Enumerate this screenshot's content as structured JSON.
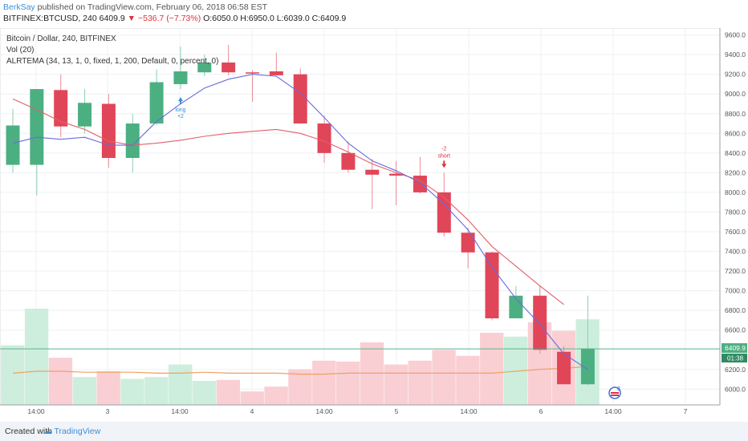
{
  "header": {
    "user": "BerkSay",
    "published_text": "published on TradingView.com, February 06, 2018 06:58 EST",
    "symbol": "BITFINEX:BTCUSD, 240",
    "last": "6409.9",
    "change": "▼ −536.7 (−7.73%)",
    "ohlc": "O:6050.0 H:6950.0 L:6039.0 C:6409.9"
  },
  "legend": {
    "line1": "Bitcoin / Dollar, 240, BITFINEX",
    "line2": "Vol (20)",
    "line3": "ALRTEMA (34, 13, 1, 0, fixed, 1, 200, Default, 0, percent, 0)"
  },
  "colors": {
    "up": "#4caf82",
    "down": "#e04658",
    "vol_up": "#cdeedd",
    "vol_down": "#f9cfd4",
    "ema_fast": "#6a6ae0",
    "ema_slow": "#e0606a",
    "vol_ma": "#f0a060",
    "price_line": "#4caf82",
    "grid": "#eef0f3"
  },
  "price_label": {
    "value": "6409.9",
    "countdown": "01:38"
  },
  "signals": [
    {
      "text": "long",
      "value": "+2",
      "candle": 7,
      "color": "#3c8fd6"
    },
    {
      "text": "short",
      "value": "-2",
      "candle": 18,
      "color": "#e0303c"
    }
  ],
  "chart_data": {
    "type": "candlestick",
    "title": "Bitcoin / Dollar, 240, BITFINEX",
    "y_ticks": [
      6000,
      6200,
      6400,
      6600,
      6800,
      7000,
      7200,
      7400,
      7600,
      7800,
      8000,
      8200,
      8400,
      8600,
      8800,
      9000,
      9200,
      9400,
      9600
    ],
    "ylim": [
      5840,
      9670
    ],
    "x_labels": [
      "14:00",
      "3",
      "14:00",
      "4",
      "14:00",
      "5",
      "14:00",
      "6",
      "14:00",
      "7"
    ],
    "candles": [
      {
        "o": 8280,
        "h": 8850,
        "l": 8200,
        "c": 8680
      },
      {
        "o": 8280,
        "h": 9050,
        "l": 7970,
        "c": 9050
      },
      {
        "o": 9040,
        "h": 9200,
        "l": 8560,
        "c": 8670
      },
      {
        "o": 8670,
        "h": 9050,
        "l": 8600,
        "c": 8910
      },
      {
        "o": 8900,
        "h": 9000,
        "l": 8250,
        "c": 8350
      },
      {
        "o": 8350,
        "h": 8800,
        "l": 8200,
        "c": 8700
      },
      {
        "o": 8700,
        "h": 9250,
        "l": 8680,
        "c": 9120
      },
      {
        "o": 9100,
        "h": 9480,
        "l": 9050,
        "c": 9230
      },
      {
        "o": 9220,
        "h": 9400,
        "l": 9180,
        "c": 9320
      },
      {
        "o": 9320,
        "h": 9500,
        "l": 9190,
        "c": 9220
      },
      {
        "o": 9220,
        "h": 9240,
        "l": 8920,
        "c": 9210
      },
      {
        "o": 9230,
        "h": 9420,
        "l": 9190,
        "c": 9190
      },
      {
        "o": 9200,
        "h": 9260,
        "l": 8700,
        "c": 8700
      },
      {
        "o": 8700,
        "h": 8780,
        "l": 8300,
        "c": 8400
      },
      {
        "o": 8400,
        "h": 8520,
        "l": 8200,
        "c": 8230
      },
      {
        "o": 8230,
        "h": 8340,
        "l": 7830,
        "c": 8180
      },
      {
        "o": 8190,
        "h": 8320,
        "l": 7870,
        "c": 8170
      },
      {
        "o": 8170,
        "h": 8360,
        "l": 7990,
        "c": 8000
      },
      {
        "o": 8000,
        "h": 8200,
        "l": 7550,
        "c": 7590
      },
      {
        "o": 7590,
        "h": 7640,
        "l": 7230,
        "c": 7390
      },
      {
        "o": 7390,
        "h": 7400,
        "l": 6700,
        "c": 6720
      },
      {
        "o": 6720,
        "h": 7050,
        "l": 6720,
        "c": 6950
      },
      {
        "o": 6950,
        "h": 7050,
        "l": 6360,
        "c": 6400
      },
      {
        "o": 6380,
        "h": 6440,
        "l": 6050,
        "c": 6050
      },
      {
        "o": 6050,
        "h": 6950,
        "l": 6039,
        "c": 6409.9
      }
    ],
    "volume": [
      0.62,
      1.0,
      0.49,
      0.29,
      0.35,
      0.27,
      0.29,
      0.42,
      0.25,
      0.26,
      0.14,
      0.19,
      0.37,
      0.46,
      0.45,
      0.65,
      0.42,
      0.46,
      0.57,
      0.51,
      0.75,
      0.71,
      0.86,
      0.77,
      0.89
    ],
    "vol_ma": [
      0.33,
      0.35,
      0.35,
      0.34,
      0.34,
      0.34,
      0.33,
      0.33,
      0.34,
      0.33,
      0.33,
      0.33,
      0.32,
      0.32,
      0.33,
      0.33,
      0.33,
      0.33,
      0.33,
      0.33,
      0.33,
      0.35,
      0.37,
      0.38,
      0.4
    ],
    "ema_fast": [
      8500,
      8560,
      8540,
      8560,
      8480,
      8480,
      8720,
      8900,
      9060,
      9150,
      9200,
      9180,
      9010,
      8760,
      8500,
      8320,
      8220,
      8100,
      7880,
      7620,
      7240,
      6920,
      6660,
      6360,
      6200
    ],
    "ema_slow": [
      8950,
      8840,
      8720,
      8640,
      8520,
      8480,
      8500,
      8530,
      8570,
      8600,
      8620,
      8640,
      8600,
      8520,
      8410,
      8290,
      8200,
      8120,
      7950,
      7720,
      7450,
      7250,
      7050,
      6860,
      null
    ]
  }
}
